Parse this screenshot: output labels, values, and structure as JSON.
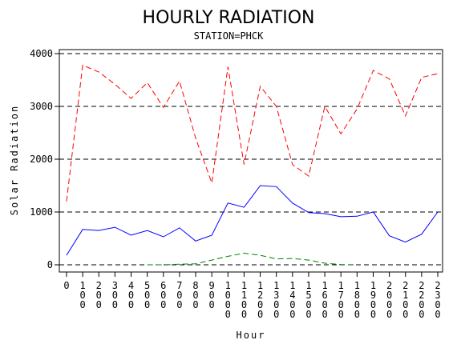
{
  "chart_data": {
    "type": "line",
    "title": "HOURLY RADIATION",
    "subtitle": "STATION=PHCK",
    "xlabel": "Hour",
    "ylabel": "Solar Radiation",
    "ylim": [
      0,
      4000
    ],
    "yticks": [
      "0",
      "1000",
      "2000",
      "3000",
      "4000"
    ],
    "grid": "horizontal dashed",
    "categories": [
      "0",
      "100",
      "200",
      "300",
      "400",
      "500",
      "600",
      "700",
      "800",
      "900",
      "1000",
      "1100",
      "1200",
      "1300",
      "1400",
      "1500",
      "1600",
      "1700",
      "1800",
      "1900",
      "2000",
      "2100",
      "2200",
      "2300"
    ],
    "series": [
      {
        "color": "#ff0000",
        "dash": "dashed",
        "values": [
          1200,
          3780,
          3650,
          3420,
          3150,
          3450,
          2980,
          3480,
          2400,
          1550,
          3750,
          1900,
          3380,
          3000,
          1900,
          1680,
          3000,
          2480,
          2950,
          3680,
          3520,
          2820,
          3550,
          3620
        ]
      },
      {
        "color": "#0000ff",
        "dash": "solid",
        "values": [
          180,
          670,
          650,
          710,
          560,
          650,
          530,
          700,
          450,
          560,
          1170,
          1090,
          1500,
          1480,
          1170,
          990,
          970,
          910,
          920,
          1000,
          550,
          430,
          580,
          1000
        ]
      },
      {
        "color": "#008000",
        "dash": "dashed",
        "values": [
          null,
          null,
          null,
          null,
          null,
          0,
          0,
          10,
          20,
          90,
          160,
          220,
          180,
          110,
          120,
          90,
          30,
          5,
          0,
          null,
          null,
          null,
          null,
          null
        ]
      }
    ]
  }
}
